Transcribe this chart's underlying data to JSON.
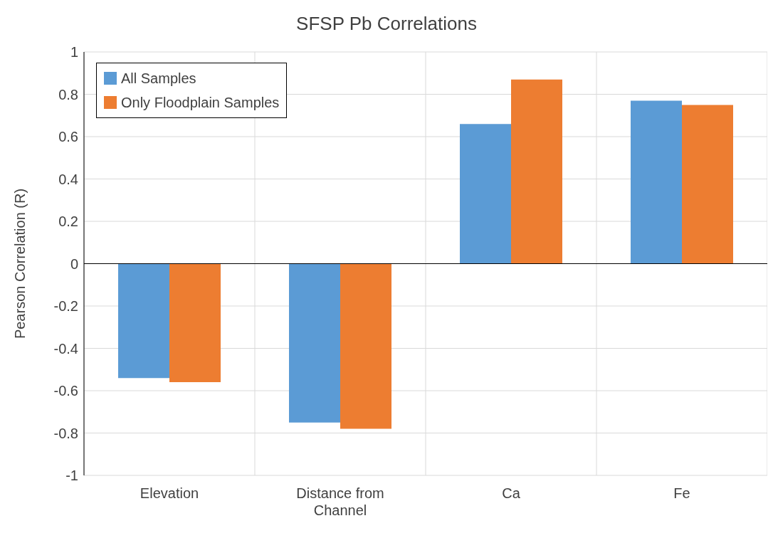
{
  "chart_data": {
    "type": "bar",
    "title": "SFSP Pb Correlations",
    "ylabel": "Pearson Correlation (R)",
    "categories": [
      "Elevation",
      "Distance from Channel",
      "Ca",
      "Fe"
    ],
    "series": [
      {
        "name": "All Samples",
        "color": "#5b9bd5",
        "values": [
          -0.54,
          -0.75,
          0.66,
          0.77
        ]
      },
      {
        "name": "Only Floodplain Samples",
        "color": "#ed7d31",
        "values": [
          -0.56,
          -0.78,
          0.87,
          0.75
        ]
      }
    ],
    "ylim": [
      -1,
      1
    ],
    "yticks": [
      -1,
      -0.8,
      -0.6,
      -0.4,
      -0.2,
      0,
      0.2,
      0.4,
      0.6,
      0.8,
      1
    ],
    "grid": true,
    "legend": "top left"
  }
}
